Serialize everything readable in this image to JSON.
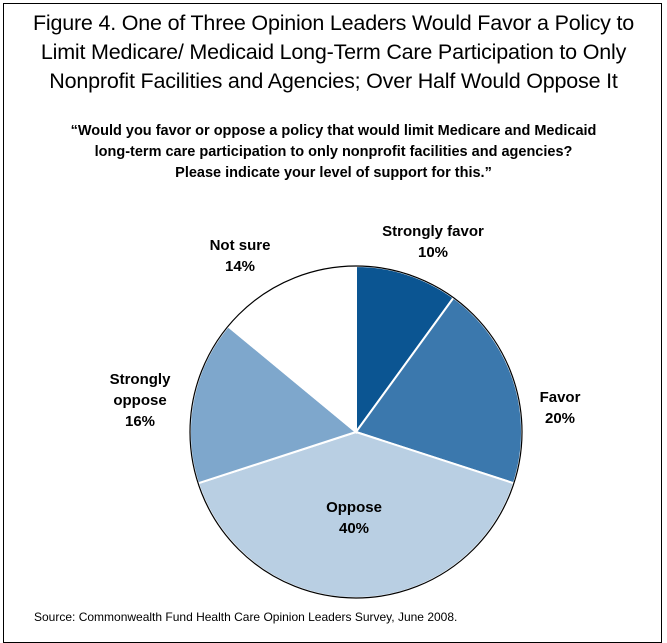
{
  "figure": {
    "title_lines": [
      "Figure 4. One of Three Opinion Leaders Would Favor a Policy to",
      "Limit Medicare/ Medicaid Long-Term Care Participation to Only",
      "Nonprofit Facilities and Agencies; Over Half Would Oppose It"
    ],
    "question_lines": [
      "“Would you favor or oppose a policy that would limit Medicare and Medicaid",
      "long-term care participation to only nonprofit facilities and agencies?",
      "Please indicate your level of support for this.”"
    ],
    "source": "Source: Commonwealth Fund Health Care Opinion Leaders Survey, June 2008."
  },
  "chart_data": {
    "type": "pie",
    "slices": [
      {
        "label_lines": [
          "Strongly favor"
        ],
        "value_label": "10%",
        "value": 10,
        "color": "#0b5592"
      },
      {
        "label_lines": [
          "Favor"
        ],
        "value_label": "20%",
        "value": 20,
        "color": "#3b78ad"
      },
      {
        "label_lines": [
          "Oppose"
        ],
        "value_label": "40%",
        "value": 40,
        "color": "#b9cfe3"
      },
      {
        "label_lines": [
          "Strongly",
          "oppose"
        ],
        "value_label": "16%",
        "value": 16,
        "color": "#7ea7cc"
      },
      {
        "label_lines": [
          "Not sure"
        ],
        "value_label": "14%",
        "value": 14,
        "color": "#ffffff"
      }
    ]
  }
}
